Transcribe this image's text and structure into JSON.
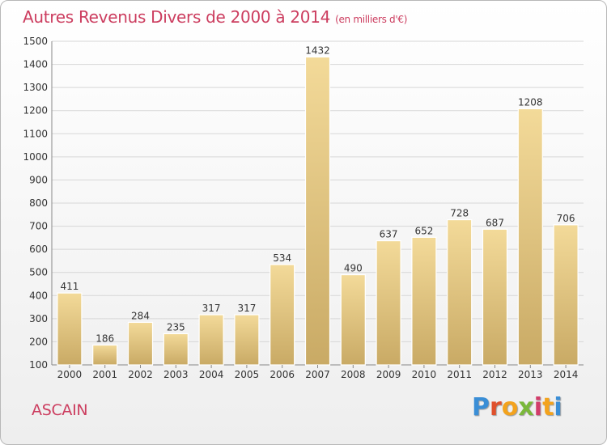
{
  "header": {
    "title": "Autres Revenus Divers de 2000 à 2014",
    "subtitle": "(en milliers d'€)"
  },
  "footer": {
    "town": "ASCAIN",
    "brand": "Proxiti"
  },
  "colors": {
    "title": "#cc3d5f",
    "bar_light": "#f3da99",
    "bar_dark": "#c9aa65",
    "grid": "#d7d7d7"
  },
  "chart_data": {
    "type": "bar",
    "title": "Autres Revenus Divers de 2000 à 2014",
    "subtitle": "(en milliers d'€)",
    "xlabel": "",
    "ylabel": "",
    "categories": [
      "2000",
      "2001",
      "2002",
      "2003",
      "2004",
      "2005",
      "2006",
      "2007",
      "2008",
      "2009",
      "2010",
      "2011",
      "2012",
      "2013",
      "2014"
    ],
    "values": [
      411,
      186,
      284,
      235,
      317,
      317,
      534,
      1432,
      490,
      637,
      652,
      728,
      687,
      1208,
      706
    ],
    "data_labels": [
      "411",
      "186",
      "284",
      "235",
      "317",
      "317",
      "534",
      "1432",
      "490",
      "637",
      "652",
      "728",
      "687",
      "1208",
      "706"
    ],
    "ylim": [
      100,
      1500
    ],
    "yticks": [
      100,
      200,
      300,
      400,
      500,
      600,
      700,
      800,
      900,
      1000,
      1100,
      1200,
      1300,
      1400,
      1500
    ],
    "grid": true,
    "legend": "none"
  }
}
